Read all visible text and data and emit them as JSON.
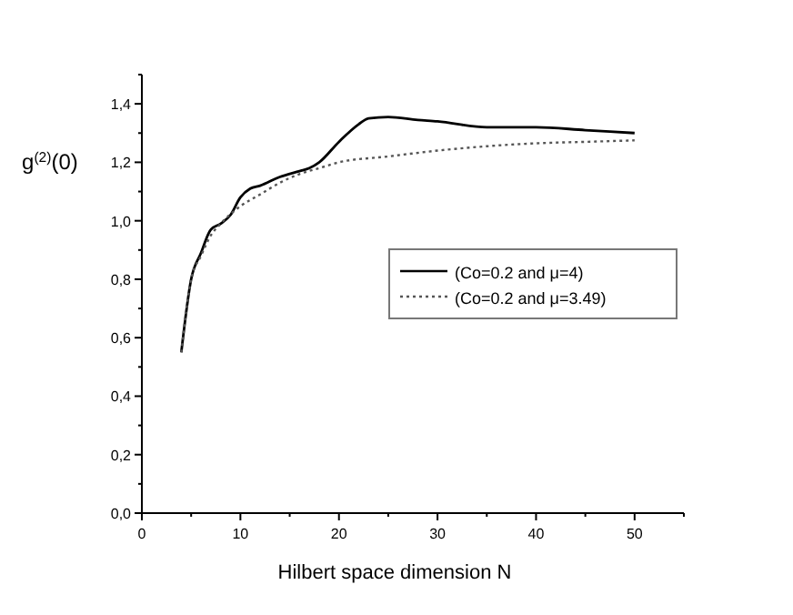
{
  "chart_data": {
    "type": "line",
    "xlabel": "Hilbert space dimension N",
    "ylabel": "g$^{(2)}$(0)",
    "xlim": [
      0,
      55
    ],
    "xticks": [
      0,
      10,
      20,
      30,
      40,
      50
    ],
    "ylim": [
      0,
      1.5
    ],
    "yticks": [
      {
        "value": 0,
        "label": "0,0"
      },
      {
        "value": 0.2,
        "label": "0,2"
      },
      {
        "value": 0.4,
        "label": "0,4"
      },
      {
        "value": 0.6,
        "label": "0,6"
      },
      {
        "value": 0.8,
        "label": "0,8"
      },
      {
        "value": 1,
        "label": "1,0"
      },
      {
        "value": 1.2,
        "label": "1,2"
      },
      {
        "value": 1.4,
        "label": "1,4"
      }
    ],
    "grid": false,
    "legend": "right",
    "series": [
      {
        "name": "(Co=0.2 and μ=4)",
        "color": "#000000",
        "line_style": "solid",
        "x": [
          4,
          5,
          6,
          7,
          8,
          9,
          10,
          11,
          12,
          14,
          16,
          17,
          18,
          20,
          22,
          23,
          25,
          28,
          30,
          35,
          40,
          45,
          50
        ],
        "values": [
          0.55,
          0.8,
          0.89,
          0.97,
          0.99,
          1.02,
          1.08,
          1.11,
          1.12,
          1.15,
          1.17,
          1.18,
          1.2,
          1.27,
          1.33,
          1.35,
          1.355,
          1.345,
          1.34,
          1.32,
          1.32,
          1.31,
          1.3
        ]
      },
      {
        "name": "(Co=0.2 and μ=3.49)",
        "color": "#555555",
        "line_style": "dotted",
        "x": [
          4,
          5,
          6,
          7,
          8,
          10,
          12,
          14,
          16,
          18,
          20,
          25,
          30,
          35,
          40,
          45,
          50
        ],
        "values": [
          0.55,
          0.8,
          0.88,
          0.95,
          0.99,
          1.05,
          1.09,
          1.13,
          1.16,
          1.18,
          1.2,
          1.22,
          1.24,
          1.255,
          1.265,
          1.27,
          1.275
        ]
      }
    ]
  }
}
